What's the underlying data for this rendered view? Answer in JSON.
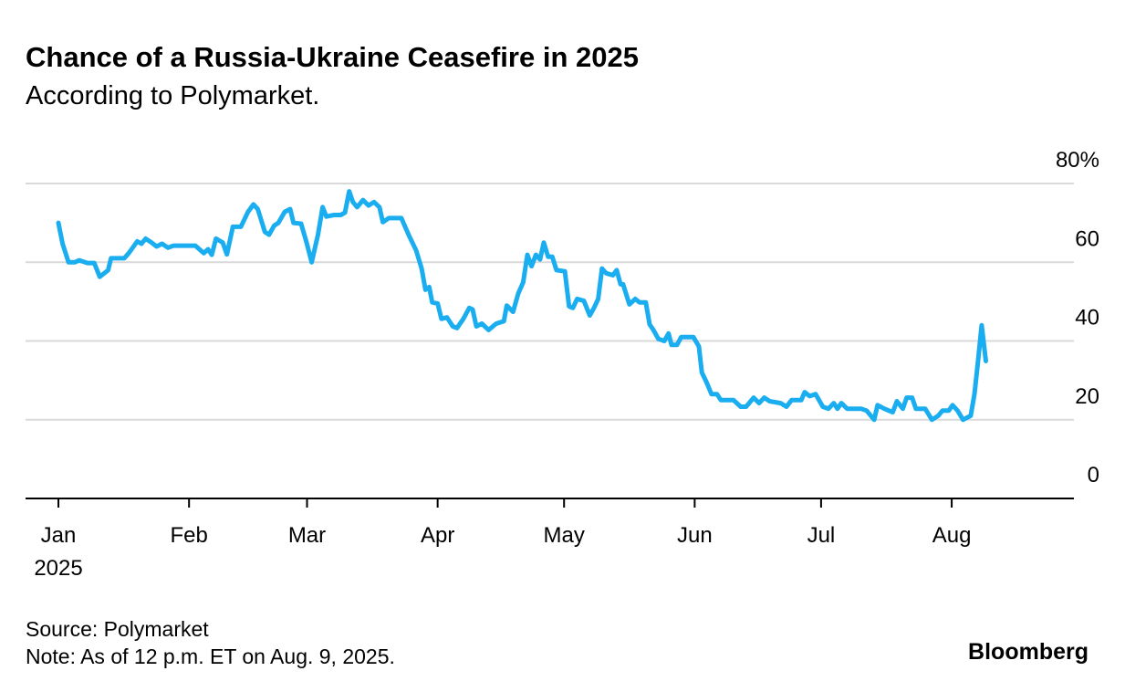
{
  "chart_data": {
    "type": "line",
    "title": "Chance of a Russia-Ukraine Ceasefire in 2025",
    "subtitle": "According to Polymarket.",
    "source": "Source: Polymarket",
    "note": "Note: As of 12 p.m. ET on Aug. 9, 2025.",
    "brand": "Bloomberg",
    "xtick_sublabel": "2025",
    "xlim": [
      -7.8,
      241
    ],
    "xticks": [
      {
        "value": 0,
        "label": "Jan"
      },
      {
        "value": 31,
        "label": "Feb"
      },
      {
        "value": 59,
        "label": "Mar"
      },
      {
        "value": 90,
        "label": "Apr"
      },
      {
        "value": 120,
        "label": "May"
      },
      {
        "value": 151,
        "label": "Jun"
      },
      {
        "value": 181,
        "label": "Jul"
      },
      {
        "value": 212,
        "label": "Aug"
      }
    ],
    "ylim": [
      0,
      80
    ],
    "yticks": [
      0,
      20,
      40,
      60,
      {
        "value": 80,
        "label": "80%"
      }
    ],
    "grid": true,
    "x": [
      0,
      1,
      2.4,
      3.9,
      4.9,
      6.9,
      8.5,
      9.8,
      11.8,
      12.5,
      14.3,
      15.6,
      16.7,
      18.7,
      19.7,
      20.7,
      22.1,
      23.3,
      24.6,
      26,
      27.3,
      30.5,
      32.5,
      34.5,
      35.5,
      36.4,
      37.4,
      39,
      40,
      41.4,
      43.3,
      45,
      46.3,
      47.3,
      49,
      50,
      51.2,
      52.2,
      53.7,
      55,
      55.8,
      57.6,
      58.9,
      60.1,
      61.6,
      62.7,
      63.6,
      65.4,
      67,
      68,
      69,
      69.9,
      70.9,
      72.3,
      73.6,
      74.9,
      76.2,
      77,
      78.4,
      81.4,
      83.1,
      84.9,
      86.2,
      87.1,
      88,
      88.7,
      90,
      90.9,
      92.2,
      93.6,
      94.6,
      96.1,
      97.5,
      98.3,
      99.2,
      100.5,
      102.1,
      103.9,
      105.7,
      106.4,
      107.9,
      109.1,
      110.3,
      111.3,
      112.3,
      113.3,
      114.3,
      115.2,
      116.2,
      117.2,
      118.2,
      120.2,
      121.2,
      122.1,
      123.1,
      124.7,
      126.1,
      127.1,
      128.1,
      129,
      130,
      131.6,
      132.5,
      133.4,
      134,
      135.5,
      136.9,
      137.9,
      139.4,
      140.3,
      141.2,
      142.4,
      143.8,
      144.8,
      145.5,
      146.8,
      147.8,
      150.7,
      152,
      152.7,
      153.7,
      155,
      156.3,
      157.2,
      160.2,
      161.9,
      163.2,
      165,
      166.3,
      167.5,
      168.8,
      171.4,
      172.8,
      174,
      176.3,
      177.1,
      178.3,
      179.7,
      181.4,
      182.7,
      184,
      184.9,
      185.8,
      187.2,
      190.5,
      191.8,
      193.6,
      194.4,
      196,
      198,
      199,
      200.4,
      201.3,
      202.6,
      203.5,
      205.7,
      207.3,
      208.8,
      209.8,
      211.3,
      212.2,
      213.4,
      214.7,
      216.5,
      217.4,
      218.2,
      219.1,
      220.1
    ],
    "series": [
      {
        "name": "Chance",
        "color": "#1aaef0",
        "values": [
          70,
          64.7,
          60,
          60,
          60.5,
          59.8,
          59.8,
          56.3,
          58,
          61,
          61,
          61,
          62.3,
          65.3,
          64.7,
          66,
          65,
          64,
          64.7,
          63.7,
          64.2,
          64.2,
          64.2,
          62.3,
          63.3,
          61.9,
          66,
          65,
          62,
          69,
          69,
          72.8,
          74.7,
          73.5,
          67.7,
          67,
          69.3,
          70,
          72.8,
          73.5,
          70,
          69.8,
          65,
          60,
          67,
          74,
          71.6,
          72,
          72,
          72.6,
          78,
          75.3,
          74,
          75.8,
          74.4,
          75.3,
          74,
          70.2,
          71.2,
          71.2,
          67,
          63,
          58.4,
          53,
          53.7,
          49.8,
          49.5,
          45.6,
          46,
          43.7,
          43.3,
          45.6,
          48.4,
          48,
          43.7,
          44.4,
          42.8,
          44.4,
          45,
          49,
          47.4,
          52,
          54.9,
          61.9,
          59,
          61.9,
          60.7,
          65,
          61.4,
          61.4,
          58,
          57.7,
          48.8,
          48.4,
          50.7,
          50.2,
          46.5,
          48.4,
          50.7,
          58.4,
          57.2,
          56.7,
          58,
          54.4,
          54.4,
          49.3,
          50.7,
          49.8,
          49.8,
          44.2,
          42.8,
          40.5,
          40,
          41.9,
          39,
          39,
          41,
          41,
          38.6,
          32,
          29.8,
          26.5,
          26.5,
          25,
          25,
          23.3,
          23.3,
          25.6,
          24.2,
          25.6,
          24.7,
          24.2,
          23.3,
          25,
          25,
          27,
          26,
          26.5,
          23.3,
          22.8,
          24.2,
          22.8,
          24.2,
          22.8,
          22.8,
          22.3,
          20,
          23.7,
          22.8,
          21.9,
          24.7,
          22.8,
          25.6,
          25.6,
          22.8,
          22.8,
          20,
          21,
          22.3,
          22.3,
          23.7,
          22.3,
          20,
          21,
          26.5,
          34.4,
          44,
          34.9
        ]
      }
    ]
  }
}
